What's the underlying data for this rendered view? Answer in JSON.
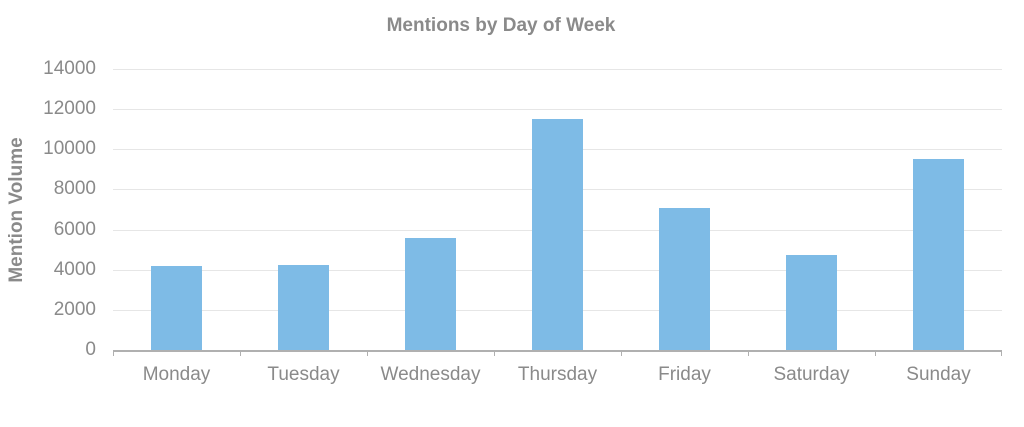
{
  "chart_data": {
    "type": "bar",
    "title": "Mentions by Day of Week",
    "xlabel": "",
    "ylabel": "Mention Volume",
    "categories": [
      "Monday",
      "Tuesday",
      "Wednesday",
      "Thursday",
      "Friday",
      "Saturday",
      "Sunday"
    ],
    "values": [
      4200,
      4230,
      5580,
      11500,
      7070,
      4730,
      9520
    ],
    "ylim": [
      0,
      14000
    ],
    "yticks": [
      0,
      2000,
      4000,
      6000,
      8000,
      10000,
      12000,
      14000
    ],
    "grid": true,
    "legend": null,
    "bar_color": "#7ebbe6"
  }
}
